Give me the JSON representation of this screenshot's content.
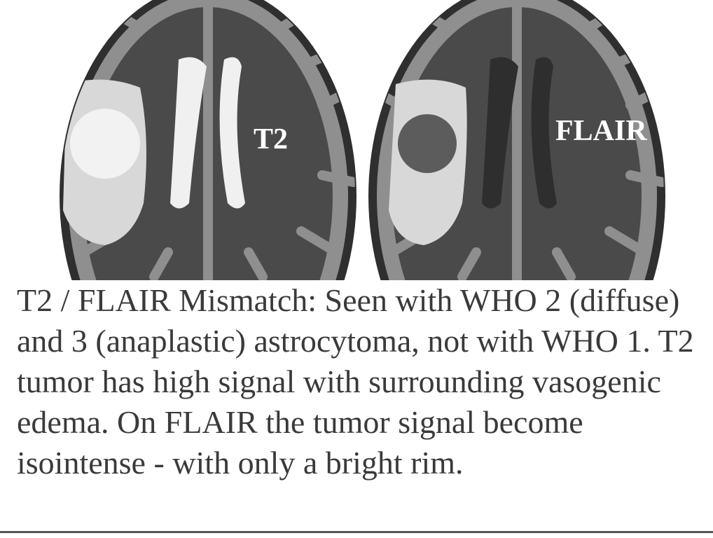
{
  "panels": {
    "left": {
      "label": "T2"
    },
    "right": {
      "label": "FLAIR"
    }
  },
  "caption": "T2 / FLAIR Mismatch:  Seen with WHO 2 (diffuse) and 3 (anaplastic) astrocytoma, not with WHO 1.  T2 tumor has high signal with surrounding vasogenic edema.  On FLAIR the tumor signal become isointense - with only a bright rim.",
  "colors": {
    "background": "#ffffff",
    "skull": "#3f3f3f",
    "brain": "#4a4a4a",
    "gyri": "#8f8f8f",
    "edema": "#d8d8d8",
    "t2_tumor": "#f2f2f2",
    "flair_tumor": "#5c5c5c",
    "t2_ventricle": "#f0f0f0",
    "flair_ventricle": "#2e2e2e",
    "text": "#3a3a3a"
  }
}
